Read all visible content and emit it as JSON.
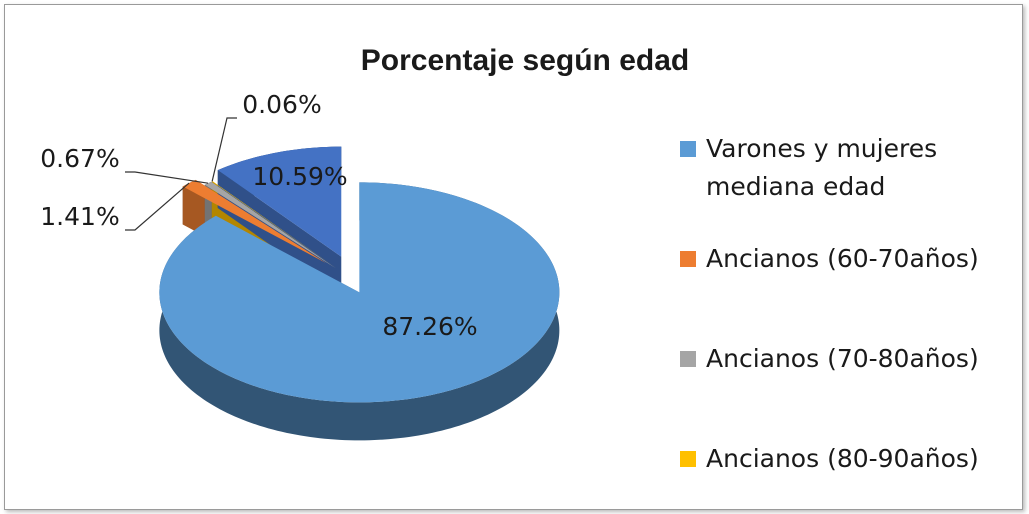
{
  "chart_data": {
    "type": "pie",
    "title": "Porcentaje según edad",
    "categories": [
      "Varones y mujeres mediana edad",
      "Ancianos (60-70años)",
      "Ancianos (70-80años)",
      "Ancianos (80-90años)",
      null
    ],
    "values": [
      87.26,
      1.41,
      0.67,
      0.06,
      10.59
    ],
    "value_labels": [
      "87.26%",
      "1.41%",
      "0.67%",
      "0.06%",
      "10.59%"
    ],
    "colors": [
      "#5b9bd5",
      "#ed7d31",
      "#a5a5a5",
      "#ffc000",
      "#4472c4"
    ],
    "legend": "right"
  }
}
